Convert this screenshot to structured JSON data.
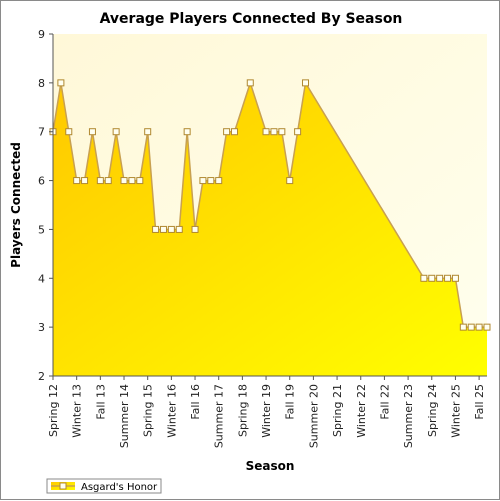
{
  "chart_data": {
    "type": "area",
    "title": "Average Players Connected By Season",
    "xlabel": "Season",
    "ylabel": "Players Connected",
    "ylim": [
      2,
      9
    ],
    "yticks": [
      2,
      3,
      4,
      5,
      6,
      7,
      8,
      9
    ],
    "grid": false,
    "legend_position": "bottom-left",
    "x_tick_labels": [
      "Spring 12",
      "Winter 13",
      "Fall 13",
      "Summer 14",
      "Spring 15",
      "Winter 16",
      "Fall 16",
      "Summer 17",
      "Spring 18",
      "Winter 19",
      "Fall 19",
      "Summer 20",
      "Spring 21",
      "Winter 22",
      "Fall 22",
      "Summer 23",
      "Spring 24",
      "Winter 25",
      "Fall 25"
    ],
    "x_tick_positions": [
      0,
      3,
      6,
      9,
      12,
      15,
      18,
      21,
      24,
      27,
      30,
      33,
      36,
      39,
      42,
      45,
      48,
      51,
      54
    ],
    "colors": {
      "fill_top": "#ffc800",
      "fill_bottom": "#ffff00",
      "line": "#c8a050",
      "marker_fill": "#fffff0",
      "plot_background": "#fffbe0"
    },
    "series": [
      {
        "name": "Asgard's Honor",
        "points": [
          {
            "x": 0,
            "y": 7
          },
          {
            "x": 1,
            "y": 8
          },
          {
            "x": 2,
            "y": 7
          },
          {
            "x": 3,
            "y": 6
          },
          {
            "x": 4,
            "y": 6
          },
          {
            "x": 5,
            "y": 7
          },
          {
            "x": 6,
            "y": 6
          },
          {
            "x": 7,
            "y": 6
          },
          {
            "x": 8,
            "y": 7
          },
          {
            "x": 9,
            "y": 6
          },
          {
            "x": 10,
            "y": 6
          },
          {
            "x": 11,
            "y": 6
          },
          {
            "x": 12,
            "y": 7
          },
          {
            "x": 13,
            "y": 5
          },
          {
            "x": 14,
            "y": 5
          },
          {
            "x": 15,
            "y": 5
          },
          {
            "x": 16,
            "y": 5
          },
          {
            "x": 17,
            "y": 7
          },
          {
            "x": 18,
            "y": 5
          },
          {
            "x": 19,
            "y": 6
          },
          {
            "x": 20,
            "y": 6
          },
          {
            "x": 21,
            "y": 6
          },
          {
            "x": 22,
            "y": 7
          },
          {
            "x": 23,
            "y": 7
          },
          {
            "x": 25,
            "y": 8
          },
          {
            "x": 27,
            "y": 7
          },
          {
            "x": 28,
            "y": 7
          },
          {
            "x": 29,
            "y": 7
          },
          {
            "x": 30,
            "y": 6
          },
          {
            "x": 31,
            "y": 7
          },
          {
            "x": 32,
            "y": 8
          },
          {
            "x": 47,
            "y": 4
          },
          {
            "x": 48,
            "y": 4
          },
          {
            "x": 49,
            "y": 4
          },
          {
            "x": 50,
            "y": 4
          },
          {
            "x": 51,
            "y": 4
          },
          {
            "x": 52,
            "y": 3
          },
          {
            "x": 53,
            "y": 3
          },
          {
            "x": 54,
            "y": 3
          },
          {
            "x": 55,
            "y": 3
          }
        ]
      }
    ]
  }
}
